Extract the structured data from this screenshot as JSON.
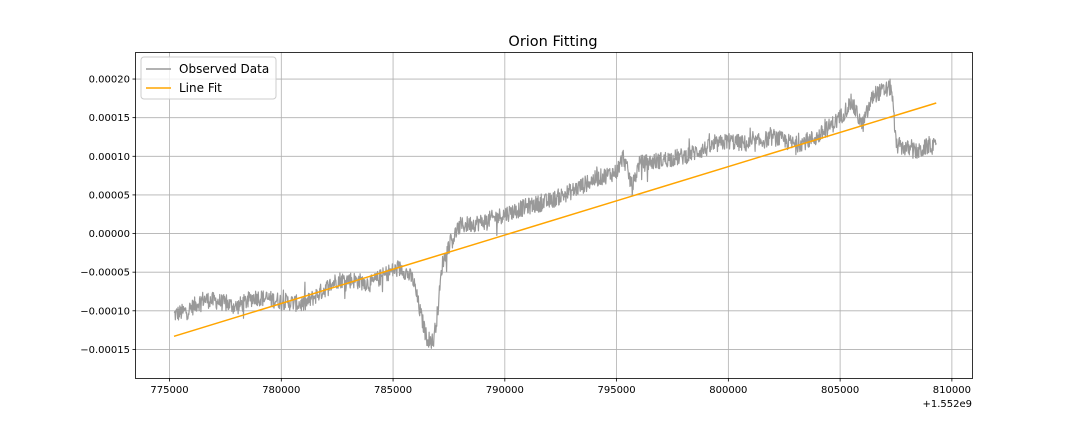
{
  "chart_data": {
    "type": "line",
    "title": "Orion Fitting",
    "xlabel": "",
    "ylabel": "",
    "x_offset_label": "+1.552e9",
    "xlim": [
      773500,
      810900
    ],
    "ylim": [
      -0.000187,
      0.000235
    ],
    "xticks": [
      775000,
      780000,
      785000,
      790000,
      795000,
      800000,
      805000,
      810000
    ],
    "xtick_labels": [
      "775000",
      "780000",
      "785000",
      "790000",
      "795000",
      "800000",
      "805000",
      "810000"
    ],
    "yticks": [
      -0.00015,
      -0.0001,
      -5e-05,
      0.0,
      5e-05,
      0.0001,
      0.00015,
      0.0002
    ],
    "ytick_labels": [
      "−0.00015",
      "−0.00010",
      "−0.00005",
      "0.00000",
      "0.00005",
      "0.00010",
      "0.00015",
      "0.00020"
    ],
    "grid": true,
    "legend_position": "top-left",
    "colors": {
      "observed": "#999999",
      "fit": "#ffa500"
    },
    "series": [
      {
        "name": "Observed Data",
        "x": [
          775200,
          775800,
          776500,
          777200,
          778000,
          778800,
          779500,
          780200,
          781000,
          781800,
          782500,
          783200,
          784000,
          784800,
          785400,
          785900,
          786200,
          786500,
          786800,
          787000,
          787200,
          787500,
          788000,
          789000,
          790000,
          791000,
          792000,
          793000,
          794000,
          795000,
          795300,
          795700,
          796000,
          797000,
          798000,
          799000,
          800000,
          801000,
          802000,
          803000,
          804000,
          805000,
          805500,
          806000,
          806500,
          807000,
          807300,
          807500,
          808000,
          808500,
          809000,
          809300
        ],
        "y": [
          -0.000105,
          -0.0001,
          -8.5e-05,
          -8.8e-05,
          -9.5e-05,
          -8.2e-05,
          -8.5e-05,
          -8.8e-05,
          -9.2e-05,
          -7.5e-05,
          -6e-05,
          -6e-05,
          -6.5e-05,
          -5e-05,
          -4.5e-05,
          -6e-05,
          -0.0001,
          -0.000135,
          -0.00014,
          -0.0001,
          -4e-05,
          -1.5e-05,
          1e-05,
          1.5e-05,
          2.5e-05,
          3.5e-05,
          4.2e-05,
          5.5e-05,
          7e-05,
          8e-05,
          0.0001,
          6e-05,
          9e-05,
          9.5e-05,
          0.0001,
          0.00011,
          0.00012,
          0.000115,
          0.000125,
          0.000115,
          0.000125,
          0.00015,
          0.00017,
          0.00014,
          0.00018,
          0.000185,
          0.00019,
          0.000115,
          0.00011,
          0.000105,
          0.000115,
          0.00011
        ]
      },
      {
        "name": "Line Fit",
        "x": [
          775200,
          809300
        ],
        "y": [
          -0.000133,
          0.000169
        ]
      }
    ]
  }
}
